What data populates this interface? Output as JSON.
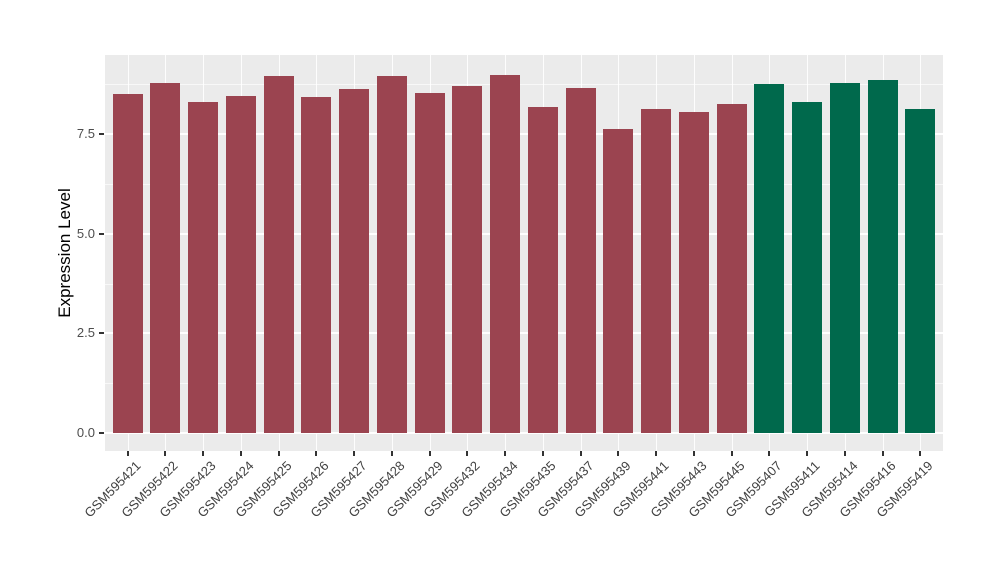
{
  "chart_data": {
    "type": "bar",
    "title": "",
    "xlabel": "",
    "ylabel": "Expression Level",
    "categories": [
      "GSM595421",
      "GSM595422",
      "GSM595423",
      "GSM595424",
      "GSM595425",
      "GSM595426",
      "GSM595427",
      "GSM595428",
      "GSM595429",
      "GSM595432",
      "GSM595434",
      "GSM595435",
      "GSM595437",
      "GSM595439",
      "GSM595441",
      "GSM595443",
      "GSM595445",
      "GSM595407",
      "GSM595411",
      "GSM595414",
      "GSM595416",
      "GSM595419"
    ],
    "values": [
      8.5,
      8.78,
      8.3,
      8.45,
      8.95,
      8.43,
      8.62,
      8.95,
      8.53,
      8.7,
      8.98,
      8.17,
      8.65,
      7.62,
      8.12,
      8.05,
      8.25,
      8.75,
      8.3,
      8.78,
      8.85,
      8.12
    ],
    "bar_colors": [
      "#9B4450",
      "#9B4450",
      "#9B4450",
      "#9B4450",
      "#9B4450",
      "#9B4450",
      "#9B4450",
      "#9B4450",
      "#9B4450",
      "#9B4450",
      "#9B4450",
      "#9B4450",
      "#9B4450",
      "#9B4450",
      "#9B4450",
      "#9B4450",
      "#9B4450",
      "#00694C",
      "#00694C",
      "#00694C",
      "#00694C",
      "#00694C"
    ],
    "group_colors": {
      "group1": "#9B4450",
      "group2": "#00694C"
    },
    "ylim": [
      -0.45,
      9.48
    ],
    "yticks": [
      0.0,
      2.5,
      5.0,
      7.5
    ],
    "ytick_labels": [
      "0.0",
      "2.5",
      "5.0",
      "7.5"
    ],
    "yticks_minor": [
      1.25,
      3.75,
      6.25,
      8.75
    ],
    "grid": "on",
    "legend": "none",
    "panel_background": "#EBEBEB",
    "gridline_color": "#FFFFFF",
    "tick_mark_color": "#333333",
    "axis_text_color": "#4D4D4D"
  }
}
